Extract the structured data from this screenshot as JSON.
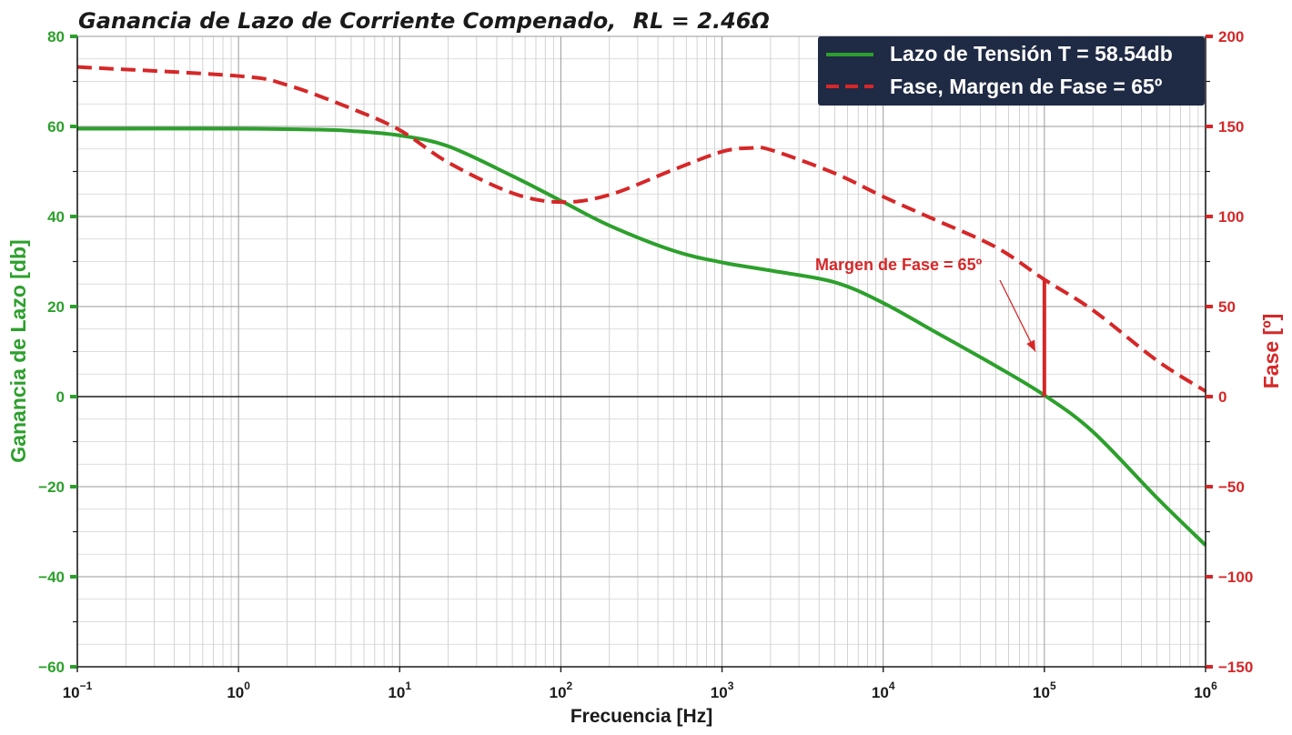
{
  "chart_data": {
    "type": "line",
    "title": "Ganancia de Lazo de Corriente Compenado,",
    "title_math": "RL = 2.46Ω",
    "xlabel": "Frecuencia [Hz]",
    "ylabel_left": "Ganancia de Lazo [db]",
    "ylabel_right": "Fase [º]",
    "xscale": "log",
    "xlim": [
      0.1,
      1000000
    ],
    "ylim_left": [
      -60,
      80
    ],
    "ylim_right": [
      -150,
      200
    ],
    "yticks_left": [
      80,
      60,
      40,
      20,
      0,
      -20,
      -40,
      -60
    ],
    "yticks_left_labels": [
      "80",
      "60",
      "40",
      "20",
      "0",
      "−20",
      "−40",
      "−60"
    ],
    "yticks_right": [
      200,
      150,
      100,
      50,
      0,
      -50,
      -100,
      -150
    ],
    "yticks_right_labels": [
      "200",
      "150",
      "100",
      "50",
      "0",
      "−50",
      "−100",
      "−150"
    ],
    "xticks_base": "10",
    "xticks_exponents": [
      "−1",
      "0",
      "1",
      "2",
      "3",
      "4",
      "5",
      "6"
    ],
    "grid": true,
    "legend_position": "top-right",
    "colors": {
      "gain": "#2ca02c",
      "phase": "#d62728",
      "legend_bg": "#1f2a44"
    },
    "series": [
      {
        "name": "Lazo de Tensión T = 58.54db",
        "axis": "left",
        "style": "solid",
        "x": [
          0.1,
          1,
          3,
          5,
          10,
          20,
          50,
          100,
          200,
          500,
          1000,
          2000,
          5000,
          10000,
          20000,
          50000,
          100000,
          200000,
          500000,
          1000000
        ],
        "y": [
          59.5,
          59.5,
          59.3,
          59.0,
          58.0,
          55.6,
          49.0,
          43.5,
          38.0,
          32.4,
          29.8,
          28.0,
          25.4,
          20.8,
          14.8,
          6.8,
          0.3,
          -7.8,
          -22.5,
          -33.0
        ]
      },
      {
        "name": "Fase, Margen de Fase = 65º",
        "axis": "right",
        "style": "dashed",
        "x": [
          0.1,
          1,
          2,
          5,
          10,
          20,
          50,
          100,
          200,
          500,
          1000,
          1500,
          2000,
          5000,
          10000,
          20000,
          50000,
          100000,
          200000,
          500000,
          1000000
        ],
        "y": [
          183,
          178,
          173,
          160,
          148,
          130,
          113,
          108,
          112,
          126,
          136,
          138,
          137,
          124,
          111,
          99,
          83,
          65,
          48,
          20,
          3
        ]
      }
    ],
    "annotation": {
      "text": "Margen de Fase = 65º",
      "x": 100000,
      "phase_from": 0,
      "phase_to": 65,
      "arrow_to": [
        88000,
        25
      ]
    }
  }
}
